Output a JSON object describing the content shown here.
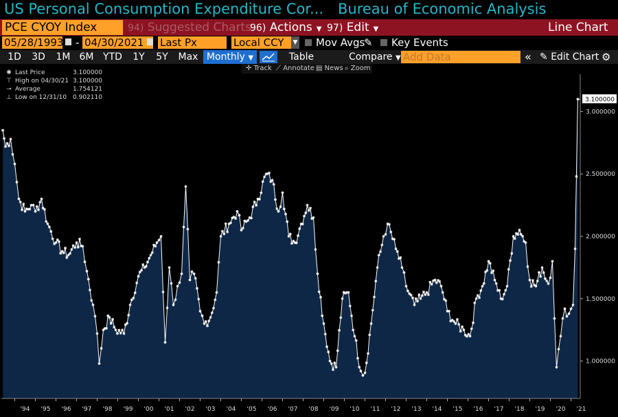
{
  "header": {
    "title": "US Personal Consumption Expenditure Cor...",
    "source": "Bureau of Economic Analysis"
  },
  "menu": {
    "ticker": "PCE CYOY Index",
    "suggested_num": "94)",
    "suggested": "Suggested Charts",
    "actions_num": "96)",
    "actions": "Actions",
    "edit_num": "97)",
    "edit": "Edit",
    "chart_type": "Line Chart"
  },
  "range": {
    "start": "05/28/1993",
    "sep": "-",
    "end": "04/30/2021",
    "field": "Last Px",
    "currency": "Local CCY",
    "mov_avgs": "Mov Avgs",
    "key_events": "Key Events"
  },
  "periods": {
    "buttons": [
      "1D",
      "3D",
      "1M",
      "6M",
      "YTD",
      "1Y",
      "5Y",
      "Max"
    ],
    "frequency": "Monthly",
    "table": "Table",
    "compare": "Compare",
    "add_data_placeholder": "Add Data",
    "edit_chart": "Edit Chart"
  },
  "tools": {
    "track": "Track",
    "annotate": "Annotate",
    "news": "News",
    "zoom": "Zoom"
  },
  "legend": [
    {
      "label": "Last Price",
      "value": "3.100000"
    },
    {
      "label": "High on 04/30/21",
      "value": "3.100000"
    },
    {
      "label": "Average",
      "value": "1.754121"
    },
    {
      "label": "Low on 12/31/10",
      "value": "0.902110"
    }
  ],
  "colors": {
    "line": "#ffffff",
    "area": "#0e2747",
    "accent": "#ffa028",
    "menu_bg": "#8e1322",
    "title": "#25b7c9",
    "active": "#1f6fd1"
  },
  "chart_data": {
    "type": "area",
    "title": "US Personal Consumption Expenditure Cor...",
    "series_name": "PCE CYOY Index",
    "frequency": "monthly",
    "last_value_label": "3.100000",
    "ylim": [
      0.7,
      3.3
    ],
    "y_ticks": [
      1.0,
      1.5,
      2.0,
      2.5,
      3.0
    ],
    "y_tick_labels": [
      "1.000000",
      "1.500000",
      "2.000000",
      "2.500000",
      "3.000000"
    ],
    "x_tick_labels": [
      "'94",
      "'95",
      "'96",
      "'97",
      "'98",
      "'99",
      "'00",
      "'01",
      "'02",
      "'03",
      "'04",
      "'05",
      "'06",
      "'07",
      "'08",
      "'09",
      "'10",
      "'11",
      "'12",
      "'13",
      "'14",
      "'15",
      "'16",
      "'17",
      "'18",
      "'19",
      "'20",
      "'21"
    ],
    "grid": false,
    "legend_position": "top-left",
    "keypoints": [
      [
        1993.42,
        2.85
      ],
      [
        1993.55,
        2.72
      ],
      [
        1993.8,
        2.78
      ],
      [
        1994.0,
        2.58
      ],
      [
        1994.2,
        2.3
      ],
      [
        1994.5,
        2.2
      ],
      [
        1994.8,
        2.25
      ],
      [
        1995.0,
        2.2
      ],
      [
        1995.3,
        2.3
      ],
      [
        1995.6,
        2.1
      ],
      [
        1996.0,
        1.95
      ],
      [
        1996.3,
        1.88
      ],
      [
        1996.6,
        1.85
      ],
      [
        1997.0,
        1.95
      ],
      [
        1997.3,
        1.92
      ],
      [
        1997.5,
        1.72
      ],
      [
        1997.8,
        1.45
      ],
      [
        1998.0,
        1.22
      ],
      [
        1998.1,
        0.98
      ],
      [
        1998.3,
        1.25
      ],
      [
        1998.6,
        1.35
      ],
      [
        1998.9,
        1.25
      ],
      [
        1999.3,
        1.22
      ],
      [
        1999.6,
        1.45
      ],
      [
        2000.0,
        1.68
      ],
      [
        2000.3,
        1.75
      ],
      [
        2000.6,
        1.85
      ],
      [
        2000.9,
        1.95
      ],
      [
        2001.1,
        2.0
      ],
      [
        2001.3,
        1.15
      ],
      [
        2001.5,
        1.75
      ],
      [
        2001.7,
        1.45
      ],
      [
        2001.9,
        1.6
      ],
      [
        2002.1,
        1.7
      ],
      [
        2002.3,
        2.4
      ],
      [
        2002.5,
        1.65
      ],
      [
        2002.7,
        1.7
      ],
      [
        2003.0,
        1.4
      ],
      [
        2003.2,
        1.3
      ],
      [
        2003.5,
        1.35
      ],
      [
        2003.8,
        1.55
      ],
      [
        2004.0,
        2.0
      ],
      [
        2004.4,
        2.1
      ],
      [
        2004.8,
        2.2
      ],
      [
        2005.0,
        2.05
      ],
      [
        2005.4,
        2.15
      ],
      [
        2005.8,
        2.3
      ],
      [
        2006.2,
        2.5
      ],
      [
        2006.5,
        2.45
      ],
      [
        2006.8,
        2.2
      ],
      [
        2007.0,
        2.35
      ],
      [
        2007.3,
        2.0
      ],
      [
        2007.6,
        1.95
      ],
      [
        2007.9,
        2.1
      ],
      [
        2008.2,
        2.25
      ],
      [
        2008.5,
        2.15
      ],
      [
        2008.7,
        1.7
      ],
      [
        2009.0,
        1.3
      ],
      [
        2009.3,
        1.0
      ],
      [
        2009.6,
        0.95
      ],
      [
        2009.9,
        1.5
      ],
      [
        2010.2,
        1.55
      ],
      [
        2010.5,
        1.2
      ],
      [
        2010.8,
        0.92
      ],
      [
        2011.0,
        0.905
      ],
      [
        2011.3,
        1.3
      ],
      [
        2011.6,
        1.75
      ],
      [
        2011.9,
        2.0
      ],
      [
        2012.1,
        2.1
      ],
      [
        2012.5,
        1.9
      ],
      [
        2012.8,
        1.75
      ],
      [
        2013.0,
        1.6
      ],
      [
        2013.4,
        1.45
      ],
      [
        2013.7,
        1.5
      ],
      [
        2014.0,
        1.55
      ],
      [
        2014.4,
        1.65
      ],
      [
        2014.7,
        1.6
      ],
      [
        2015.0,
        1.4
      ],
      [
        2015.4,
        1.3
      ],
      [
        2015.8,
        1.25
      ],
      [
        2016.1,
        1.2
      ],
      [
        2016.4,
        1.5
      ],
      [
        2016.7,
        1.6
      ],
      [
        2017.0,
        1.8
      ],
      [
        2017.3,
        1.65
      ],
      [
        2017.6,
        1.5
      ],
      [
        2017.9,
        1.6
      ],
      [
        2018.2,
        2.0
      ],
      [
        2018.5,
        2.05
      ],
      [
        2018.8,
        1.95
      ],
      [
        2019.0,
        1.65
      ],
      [
        2019.3,
        1.6
      ],
      [
        2019.6,
        1.75
      ],
      [
        2019.9,
        1.62
      ],
      [
        2020.1,
        1.8
      ],
      [
        2020.3,
        0.95
      ],
      [
        2020.5,
        1.2
      ],
      [
        2020.7,
        1.42
      ],
      [
        2020.9,
        1.38
      ],
      [
        2021.1,
        1.45
      ],
      [
        2021.2,
        1.9
      ],
      [
        2021.33,
        3.1
      ]
    ]
  }
}
